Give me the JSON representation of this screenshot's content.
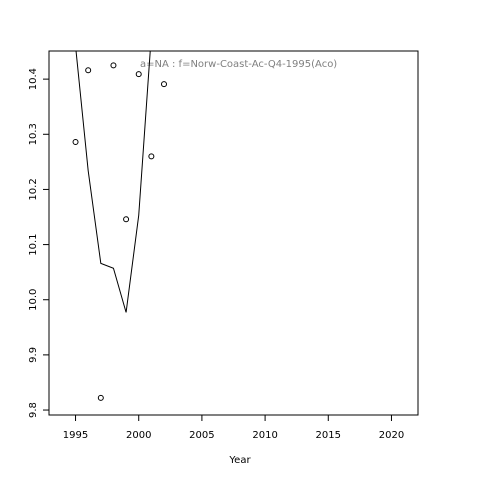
{
  "chart_data": {
    "type": "scatter",
    "annotation": "a=NA  :  f=Norw-Coast-Ac-Q4-1995(Aco)",
    "x_label": "Year",
    "xlim": [
      1992.9,
      2022.1
    ],
    "ylim": [
      9.791,
      10.451
    ],
    "xticks": [
      1995,
      2000,
      2005,
      2010,
      2015,
      2020
    ],
    "yticks": [
      9.8,
      9.9,
      {
        "value": 10,
        "label": "10.0"
      },
      10.1,
      10.2,
      10.3,
      10.4
    ],
    "series": [
      {
        "mode": "points",
        "color": "#000000",
        "x": [
          1995,
          1996,
          1997,
          1998,
          1999,
          2000,
          2001,
          2002
        ],
        "values": [
          10.286,
          10.416,
          9.822,
          10.425,
          10.146,
          10.409,
          10.26,
          10.391
        ]
      },
      {
        "mode": "line",
        "color": "#000000",
        "x": [
          1995,
          1996,
          1997,
          1998,
          1999,
          2000,
          2001
        ],
        "values": [
          10.46,
          10.234,
          10.066,
          10.057,
          9.977,
          10.153,
          10.48
        ]
      }
    ]
  }
}
